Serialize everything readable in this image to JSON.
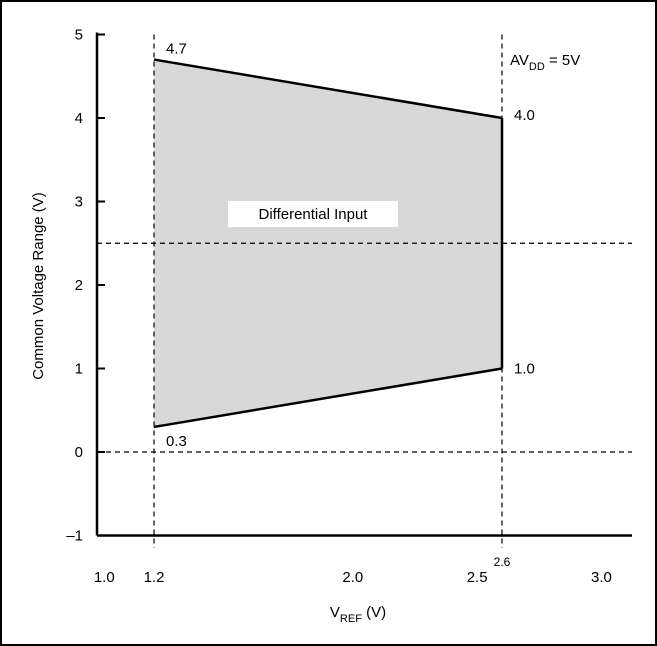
{
  "chart_data": {
    "type": "area",
    "title": "",
    "xlabel": {
      "main": "V",
      "sub": "REF",
      "unit": " (V)"
    },
    "ylabel": "Common Voltage Range (V)",
    "xlim": [
      1.0,
      3.0
    ],
    "ylim": [
      -1,
      5
    ],
    "x_ticks": [
      {
        "value": 1.0,
        "label": "1.0"
      },
      {
        "value": 1.2,
        "label": "1.2"
      },
      {
        "value": 2.0,
        "label": "2.0"
      },
      {
        "value": 2.5,
        "label": "2.5"
      },
      {
        "value": 3.0,
        "label": "3.0"
      }
    ],
    "x_tick_extra": {
      "value": 2.6,
      "label": "2.6"
    },
    "y_ticks": [
      {
        "value": 5,
        "label": "5"
      },
      {
        "value": 4,
        "label": "4"
      },
      {
        "value": 3,
        "label": "3"
      },
      {
        "value": 2,
        "label": "2"
      },
      {
        "value": 1,
        "label": "1"
      },
      {
        "value": 0,
        "label": "0"
      },
      {
        "value": -1,
        "label": "–1"
      }
    ],
    "region": {
      "label": "Differential Input",
      "upper": [
        {
          "x": 1.2,
          "y": 4.7
        },
        {
          "x": 2.6,
          "y": 4.0
        }
      ],
      "lower": [
        {
          "x": 1.2,
          "y": 0.3
        },
        {
          "x": 2.6,
          "y": 1.0
        }
      ],
      "fill": "#d8d8d8"
    },
    "point_labels": [
      {
        "x": 1.2,
        "y": 4.7,
        "label": "4.7"
      },
      {
        "x": 2.6,
        "y": 4.0,
        "label": "4.0"
      },
      {
        "x": 2.6,
        "y": 1.0,
        "label": "1.0"
      },
      {
        "x": 1.2,
        "y": 0.3,
        "label": "0.3"
      }
    ],
    "guide_lines": {
      "horizontal": [
        2.5,
        0
      ],
      "vertical": [
        1.2,
        2.6
      ]
    },
    "annotation": {
      "main": "AV",
      "sub": "DD",
      "tail": " = 5V"
    },
    "grid": false
  }
}
